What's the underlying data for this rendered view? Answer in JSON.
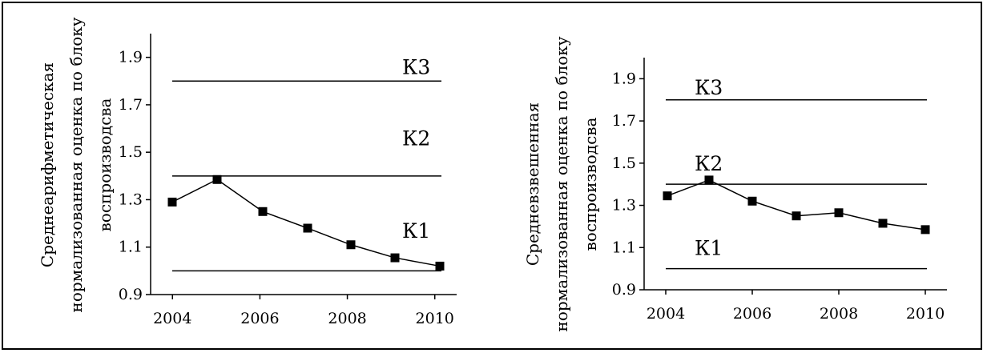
{
  "chart_data": [
    {
      "type": "line",
      "ylabel_lines": [
        "Среднеарифметическая",
        "нормализованная  оценка по блоку",
        "воспроизводсва"
      ],
      "x": [
        2004,
        2005,
        2006,
        2007,
        2008,
        2009,
        2010
      ],
      "values": [
        1.29,
        1.385,
        1.25,
        1.18,
        1.11,
        1.055,
        1.02
      ],
      "xticks": [
        "2004",
        "2006",
        "2008",
        "2010"
      ],
      "yticks": [
        "0.9",
        "1.1",
        "1.3",
        "1.5",
        "1.7",
        "1.9"
      ],
      "ylim": [
        0.9,
        2.0
      ],
      "xlim": [
        2003.5,
        2010.5
      ],
      "thresholds": [
        1.0,
        1.4,
        1.8
      ],
      "zones": [
        {
          "label": "К3",
          "y": 1.86
        },
        {
          "label": "К2",
          "y": 1.56
        },
        {
          "label": "К1",
          "y": 1.17
        }
      ],
      "grid": false,
      "legend": "none"
    },
    {
      "type": "line",
      "ylabel_lines": [
        "Средневзвешенная",
        "нормализованная оценка по блоку",
        "воспроизводсва"
      ],
      "x": [
        2004,
        2005,
        2006,
        2007,
        2008,
        2009,
        2010
      ],
      "values": [
        1.345,
        1.42,
        1.32,
        1.25,
        1.265,
        1.215,
        1.185
      ],
      "xticks": [
        "2004",
        "2006",
        "2008",
        "2010"
      ],
      "yticks": [
        "0.9",
        "1.1",
        "1.3",
        "1.5",
        "1.7",
        "1.9"
      ],
      "ylim": [
        0.9,
        2.0
      ],
      "xlim": [
        2003.5,
        2010.5
      ],
      "thresholds": [
        1.0,
        1.4,
        1.8
      ],
      "zones": [
        {
          "label": "К3",
          "y": 1.86
        },
        {
          "label": "К2",
          "y": 1.5
        },
        {
          "label": "К1",
          "y": 1.1
        }
      ],
      "grid": false,
      "legend": "none"
    }
  ]
}
